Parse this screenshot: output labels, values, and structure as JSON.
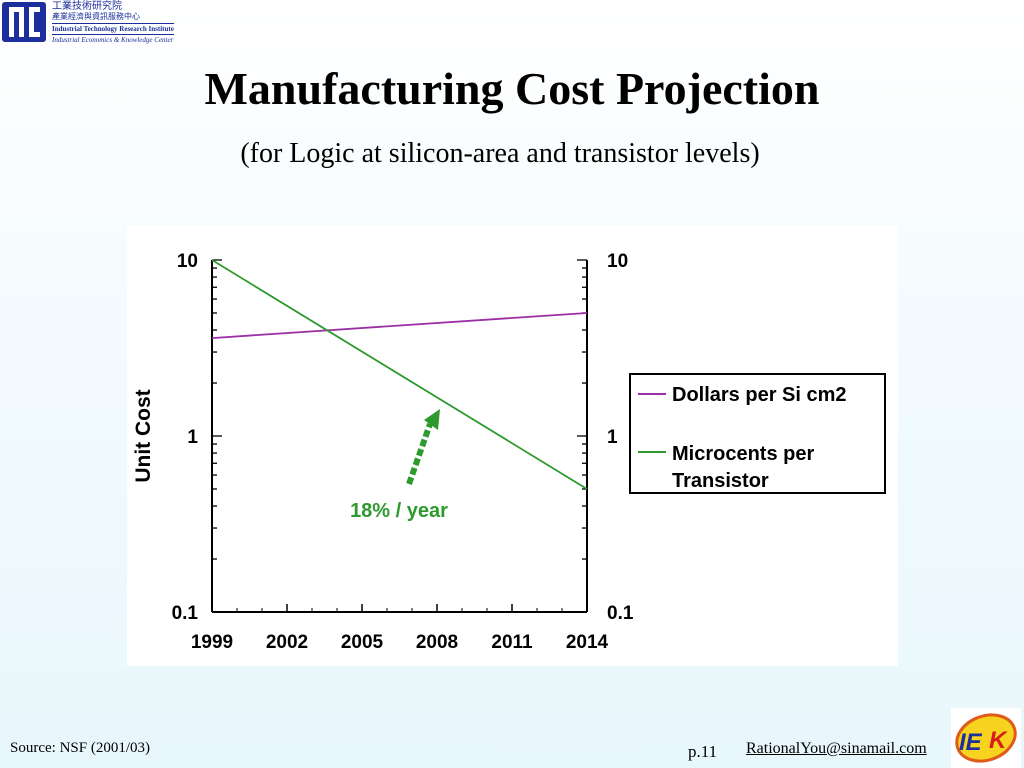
{
  "header": {
    "org_line1": "工業技術研究院",
    "org_line2": "產業經濟與資訊服務中心",
    "org_line3": "Industrial Technology Research Institute",
    "org_line4": "Industrial Economics & Knowledge Center"
  },
  "slide": {
    "title": "Manufacturing Cost Projection",
    "subtitle": "(for Logic at silicon-area and transistor levels)"
  },
  "footer": {
    "source": "Source: NSF (2001/03)",
    "page": "p.11",
    "email": "RationalYou@sinamail.com"
  },
  "chart_data": {
    "type": "line",
    "ylabel": "Unit Cost",
    "xlabel": "",
    "y_scale": "log",
    "ylim": [
      0.1,
      10
    ],
    "xlim": [
      1999,
      2014
    ],
    "x_ticks": [
      "1999",
      "2002",
      "2005",
      "2008",
      "2011",
      "2014"
    ],
    "y_ticks_left": [
      "10",
      "1",
      "0.1"
    ],
    "y_ticks_right": [
      "10",
      "1",
      "0.1"
    ],
    "grid": false,
    "legend_position": "right",
    "series": [
      {
        "name": "Dollars per Si cm2",
        "color": "#9b2fa6",
        "x": [
          1999,
          2014
        ],
        "y": [
          3.6,
          5.0
        ]
      },
      {
        "name": "Microcents per Transistor",
        "color": "#2e9a2e",
        "x": [
          1999,
          2014
        ],
        "y": [
          10,
          0.5
        ]
      }
    ],
    "annotation": {
      "text": "18% / year",
      "color": "#2e9a2e"
    }
  }
}
